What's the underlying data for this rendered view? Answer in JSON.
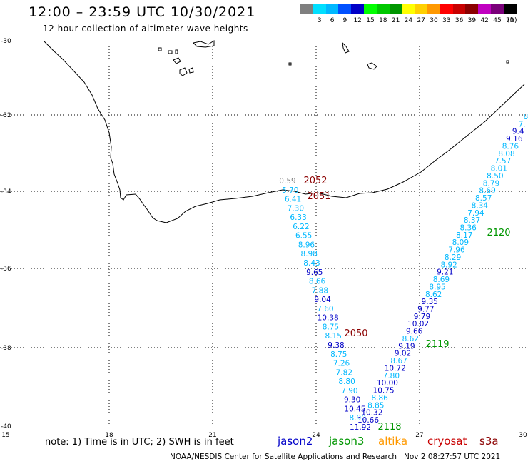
{
  "header": {
    "title": "12:00 – 23:59 UTC 10/30/2021",
    "subtitle": "12 hour collection of altimeter wave heights"
  },
  "legend": {
    "unit": "(ft)",
    "swatches": [
      {
        "color": "#7f7f7f",
        "label": ""
      },
      {
        "color": "#00dfff",
        "label": "3"
      },
      {
        "color": "#00b8ff",
        "label": "6"
      },
      {
        "color": "#0050ff",
        "label": "9"
      },
      {
        "color": "#0000c8",
        "label": "12"
      },
      {
        "color": "#00ff00",
        "label": "15"
      },
      {
        "color": "#00c800",
        "label": "18"
      },
      {
        "color": "#009600",
        "label": "21"
      },
      {
        "color": "#ffff00",
        "label": "24"
      },
      {
        "color": "#ffd000",
        "label": "27"
      },
      {
        "color": "#ff9900",
        "label": "30"
      },
      {
        "color": "#ff0000",
        "label": "33"
      },
      {
        "color": "#c80000",
        "label": "36"
      },
      {
        "color": "#8b0000",
        "label": "39"
      },
      {
        "color": "#c000c0",
        "label": "42"
      },
      {
        "color": "#7a007a",
        "label": "45"
      },
      {
        "color": "#000000",
        "label": "70"
      }
    ]
  },
  "axes": {
    "lat_labels": [
      "-30",
      "-32",
      "-34",
      "-36",
      "-38",
      "-40"
    ],
    "lon_labels": [
      "15",
      "18",
      "21",
      "24",
      "27",
      "30"
    ]
  },
  "chart_data": {
    "type": "map",
    "lon_range": [
      15,
      30
    ],
    "lat_range": [
      -40,
      -30
    ],
    "grid": true,
    "colors": {
      "c_cyan": "#00b8ff",
      "c_blue": "#0000c8",
      "c_gray": "#7f7f7f"
    },
    "passes": [
      {
        "label": "2052",
        "color": "#8b0000"
      },
      {
        "label": "2051",
        "color": "#8b0000"
      },
      {
        "label": "2050",
        "color": "#8b0000"
      },
      {
        "label": "2120",
        "color": "#009600"
      },
      {
        "label": "2119",
        "color": "#009600"
      },
      {
        "label": "2118",
        "color": "#009600"
      }
    ],
    "track_west": [
      {
        "v": "0.59",
        "c": "c_gray"
      },
      {
        "v": "5.70",
        "c": "c_cyan"
      },
      {
        "v": "6.41",
        "c": "c_cyan"
      },
      {
        "v": "7.30",
        "c": "c_cyan"
      },
      {
        "v": "6.33",
        "c": "c_cyan"
      },
      {
        "v": "6.22",
        "c": "c_cyan"
      },
      {
        "v": "6.55",
        "c": "c_cyan"
      },
      {
        "v": "8.96",
        "c": "c_cyan"
      },
      {
        "v": "8.98",
        "c": "c_cyan"
      },
      {
        "v": "8.43",
        "c": "c_cyan"
      },
      {
        "v": "9.65",
        "c": "c_blue"
      },
      {
        "v": "8.66",
        "c": "c_cyan"
      },
      {
        "v": "7.88",
        "c": "c_cyan"
      },
      {
        "v": "9.04",
        "c": "c_blue"
      },
      {
        "v": "7.60",
        "c": "c_cyan"
      },
      {
        "v": "10.38",
        "c": "c_blue"
      },
      {
        "v": "8.75",
        "c": "c_cyan"
      },
      {
        "v": "8.15",
        "c": "c_cyan"
      },
      {
        "v": "9.38",
        "c": "c_blue"
      },
      {
        "v": "8.75",
        "c": "c_cyan"
      },
      {
        "v": "7.26",
        "c": "c_cyan"
      },
      {
        "v": "7.82",
        "c": "c_cyan"
      },
      {
        "v": "8.80",
        "c": "c_cyan"
      },
      {
        "v": "7.90",
        "c": "c_cyan"
      },
      {
        "v": "9.30",
        "c": "c_blue"
      },
      {
        "v": "10.45",
        "c": "c_blue"
      },
      {
        "v": "8.90",
        "c": "c_cyan"
      },
      {
        "v": "11.92",
        "c": "c_blue"
      }
    ],
    "track_east": [
      {
        "v": "10.66",
        "c": "c_blue"
      },
      {
        "v": "10.32",
        "c": "c_blue"
      },
      {
        "v": "8.85",
        "c": "c_cyan"
      },
      {
        "v": "8.86",
        "c": "c_cyan"
      },
      {
        "v": "10.75",
        "c": "c_blue"
      },
      {
        "v": "10.00",
        "c": "c_blue"
      },
      {
        "v": "7.80",
        "c": "c_cyan"
      },
      {
        "v": "10.72",
        "c": "c_blue"
      },
      {
        "v": "8.67",
        "c": "c_cyan"
      },
      {
        "v": "9.02",
        "c": "c_blue"
      },
      {
        "v": "9.19",
        "c": "c_blue"
      },
      {
        "v": "8.62",
        "c": "c_cyan"
      },
      {
        "v": "9.66",
        "c": "c_blue"
      },
      {
        "v": "10.02",
        "c": "c_blue"
      },
      {
        "v": "9.79",
        "c": "c_blue"
      },
      {
        "v": "9.77",
        "c": "c_blue"
      },
      {
        "v": "9.35",
        "c": "c_blue"
      },
      {
        "v": "8.62",
        "c": "c_cyan"
      },
      {
        "v": "8.95",
        "c": "c_cyan"
      },
      {
        "v": "8.69",
        "c": "c_cyan"
      },
      {
        "v": "9.21",
        "c": "c_blue"
      },
      {
        "v": "8.92",
        "c": "c_cyan"
      },
      {
        "v": "8.29",
        "c": "c_cyan"
      },
      {
        "v": "7.96",
        "c": "c_cyan"
      },
      {
        "v": "8.09",
        "c": "c_cyan"
      },
      {
        "v": "8.17",
        "c": "c_cyan"
      },
      {
        "v": "8.36",
        "c": "c_cyan"
      },
      {
        "v": "8.37",
        "c": "c_cyan"
      },
      {
        "v": "7.94",
        "c": "c_cyan"
      },
      {
        "v": "8.34",
        "c": "c_cyan"
      },
      {
        "v": "8.57",
        "c": "c_cyan"
      },
      {
        "v": "8.69",
        "c": "c_cyan"
      },
      {
        "v": "8.79",
        "c": "c_cyan"
      },
      {
        "v": "8.50",
        "c": "c_cyan"
      },
      {
        "v": "8.01",
        "c": "c_cyan"
      },
      {
        "v": "7.57",
        "c": "c_cyan"
      },
      {
        "v": "8.08",
        "c": "c_cyan"
      },
      {
        "v": "8.76",
        "c": "c_cyan"
      },
      {
        "v": "9.16",
        "c": "c_blue"
      },
      {
        "v": "9.4",
        "c": "c_blue"
      },
      {
        "v": "7.",
        "c": "c_cyan"
      },
      {
        "v": "8",
        "c": "c_cyan"
      }
    ]
  },
  "footer": {
    "note": "note: 1) Time is in UTC; 2) SWH is in feet",
    "satellites": [
      {
        "name": "jason2",
        "color": "#0000c8"
      },
      {
        "name": "jason3",
        "color": "#009600"
      },
      {
        "name": "altika",
        "color": "#ff9900"
      },
      {
        "name": "cryosat",
        "color": "#c80000"
      },
      {
        "name": "s3a",
        "color": "#8b0000"
      }
    ],
    "credit": "NOAA/NESDIS Center for Satellite Applications and Research",
    "timestamp": "Nov  2 08:27:57 UTC 2021"
  }
}
